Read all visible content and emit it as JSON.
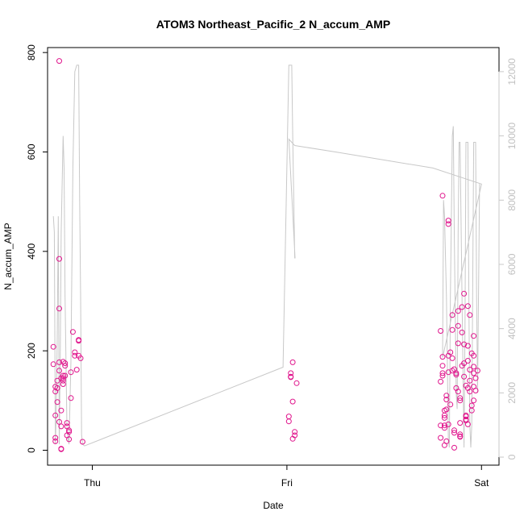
{
  "chart_data": {
    "type": "scatter",
    "title": "ATOM3 Northeast_Pacific_2 N_accum_AMP",
    "xlabel": "Date",
    "ylabel": "N_accum_AMP",
    "x_ticks": [
      {
        "label": "Thu",
        "x": 1.0
      },
      {
        "label": "Fri",
        "x": 2.0
      },
      {
        "label": "Sat",
        "x": 3.0
      }
    ],
    "xlim": [
      0.77,
      3.09
    ],
    "ylim": [
      -30,
      810
    ],
    "y_ticks": [
      0,
      200,
      400,
      600,
      800
    ],
    "y2lim": [
      -250,
      12750
    ],
    "y2_ticks": [
      0,
      2000,
      4000,
      6000,
      8000,
      10000,
      12000
    ],
    "colors": {
      "points": "#e0148c",
      "line": "#c8c8c8",
      "axis": "#000000",
      "right_axis": "#c0c0c0"
    },
    "points": [
      [
        0.8,
        173
      ],
      [
        0.8,
        208
      ],
      [
        0.81,
        118
      ],
      [
        0.81,
        128
      ],
      [
        0.81,
        70
      ],
      [
        0.81,
        18
      ],
      [
        0.81,
        25
      ],
      [
        0.82,
        97
      ],
      [
        0.82,
        125
      ],
      [
        0.82,
        140
      ],
      [
        0.83,
        160
      ],
      [
        0.83,
        177
      ],
      [
        0.83,
        783
      ],
      [
        0.83,
        385
      ],
      [
        0.83,
        285
      ],
      [
        0.83,
        57
      ],
      [
        0.84,
        48
      ],
      [
        0.84,
        3
      ],
      [
        0.84,
        2
      ],
      [
        0.84,
        145
      ],
      [
        0.84,
        80
      ],
      [
        0.85,
        150
      ],
      [
        0.85,
        140
      ],
      [
        0.85,
        145
      ],
      [
        0.85,
        133
      ],
      [
        0.85,
        178
      ],
      [
        0.86,
        175
      ],
      [
        0.86,
        170
      ],
      [
        0.86,
        150
      ],
      [
        0.87,
        55
      ],
      [
        0.87,
        48
      ],
      [
        0.87,
        30
      ],
      [
        0.88,
        37
      ],
      [
        0.88,
        22
      ],
      [
        0.88,
        40
      ],
      [
        0.89,
        105
      ],
      [
        0.89,
        157
      ],
      [
        0.9,
        238
      ],
      [
        0.91,
        190
      ],
      [
        0.91,
        197
      ],
      [
        0.92,
        162
      ],
      [
        0.93,
        220
      ],
      [
        0.93,
        222
      ],
      [
        0.93,
        190
      ],
      [
        0.94,
        185
      ],
      [
        0.95,
        17
      ],
      [
        2.01,
        68
      ],
      [
        2.01,
        58
      ],
      [
        2.02,
        148
      ],
      [
        2.02,
        155
      ],
      [
        2.02,
        147
      ],
      [
        2.03,
        177
      ],
      [
        2.03,
        98
      ],
      [
        2.03,
        23
      ],
      [
        2.04,
        30
      ],
      [
        2.04,
        37
      ],
      [
        2.05,
        135
      ],
      [
        2.79,
        25
      ],
      [
        2.79,
        50
      ],
      [
        2.79,
        138
      ],
      [
        2.79,
        240
      ],
      [
        2.8,
        188
      ],
      [
        2.8,
        155
      ],
      [
        2.8,
        150
      ],
      [
        2.8,
        170
      ],
      [
        2.8,
        512
      ],
      [
        2.81,
        50
      ],
      [
        2.81,
        10
      ],
      [
        2.81,
        45
      ],
      [
        2.81,
        65
      ],
      [
        2.81,
        80
      ],
      [
        2.81,
        70
      ],
      [
        2.82,
        110
      ],
      [
        2.82,
        82
      ],
      [
        2.82,
        102
      ],
      [
        2.82,
        18
      ],
      [
        2.83,
        455
      ],
      [
        2.83,
        462
      ],
      [
        2.83,
        52
      ],
      [
        2.83,
        190
      ],
      [
        2.83,
        157
      ],
      [
        2.84,
        197
      ],
      [
        2.84,
        92
      ],
      [
        2.85,
        160
      ],
      [
        2.85,
        242
      ],
      [
        2.85,
        272
      ],
      [
        2.85,
        185
      ],
      [
        2.86,
        163
      ],
      [
        2.86,
        40
      ],
      [
        2.86,
        35
      ],
      [
        2.86,
        5
      ],
      [
        2.87,
        155
      ],
      [
        2.87,
        152
      ],
      [
        2.87,
        125
      ],
      [
        2.88,
        118
      ],
      [
        2.88,
        250
      ],
      [
        2.88,
        280
      ],
      [
        2.88,
        215
      ],
      [
        2.89,
        55
      ],
      [
        2.89,
        27
      ],
      [
        2.89,
        32
      ],
      [
        2.89,
        28
      ],
      [
        2.89,
        105
      ],
      [
        2.89,
        100
      ],
      [
        2.9,
        288
      ],
      [
        2.9,
        237
      ],
      [
        2.9,
        170
      ],
      [
        2.91,
        213
      ],
      [
        2.91,
        175
      ],
      [
        2.91,
        148
      ],
      [
        2.91,
        315
      ],
      [
        2.92,
        130
      ],
      [
        2.92,
        62
      ],
      [
        2.92,
        70
      ],
      [
        2.92,
        68
      ],
      [
        2.92,
        60
      ],
      [
        2.93,
        52
      ],
      [
        2.93,
        290
      ],
      [
        2.93,
        210
      ],
      [
        2.93,
        125
      ],
      [
        2.93,
        180
      ],
      [
        2.94,
        140
      ],
      [
        2.94,
        272
      ],
      [
        2.94,
        162
      ],
      [
        2.94,
        118
      ],
      [
        2.95,
        90
      ],
      [
        2.95,
        80
      ],
      [
        2.95,
        195
      ],
      [
        2.96,
        168
      ],
      [
        2.96,
        155
      ],
      [
        2.96,
        100
      ],
      [
        2.96,
        190
      ],
      [
        2.96,
        230
      ],
      [
        2.96,
        128
      ],
      [
        2.97,
        145
      ],
      [
        2.97,
        120
      ],
      [
        2.98,
        160
      ]
    ],
    "secondary_line": [
      [
        0.8,
        7500
      ],
      [
        0.805,
        7000
      ],
      [
        0.81,
        400
      ],
      [
        0.815,
        1500
      ],
      [
        0.82,
        4000
      ],
      [
        0.825,
        7500
      ],
      [
        0.83,
        400
      ],
      [
        0.835,
        3000
      ],
      [
        0.84,
        7000
      ],
      [
        0.85,
        10000
      ],
      [
        0.855,
        9000
      ],
      [
        0.86,
        5000
      ],
      [
        0.87,
        800
      ],
      [
        0.88,
        400
      ],
      [
        0.89,
        3000
      ],
      [
        0.9,
        9000
      ],
      [
        0.91,
        12000
      ],
      [
        0.92,
        12200
      ],
      [
        0.93,
        12200
      ],
      [
        0.935,
        8000
      ],
      [
        0.94,
        5000
      ],
      [
        0.945,
        700
      ],
      [
        0.95,
        400
      ],
      [
        0.96,
        350
      ],
      [
        1.98,
        2800
      ],
      [
        2.01,
        12200
      ],
      [
        2.025,
        12200
      ],
      [
        2.03,
        10000
      ],
      [
        2.04,
        6200
      ],
      [
        2.042,
        6200
      ],
      [
        2.01,
        9900
      ],
      [
        2.04,
        9700
      ],
      [
        2.25,
        9500
      ],
      [
        2.5,
        9250
      ],
      [
        2.75,
        9000
      ],
      [
        3.0,
        8500
      ],
      [
        2.8,
        3100
      ],
      [
        2.805,
        8000
      ],
      [
        2.81,
        7500
      ],
      [
        2.82,
        5000
      ],
      [
        2.83,
        500
      ],
      [
        2.835,
        300
      ],
      [
        2.84,
        5000
      ],
      [
        2.85,
        10000
      ],
      [
        2.855,
        10300
      ],
      [
        2.86,
        7000
      ],
      [
        2.87,
        2000
      ],
      [
        2.875,
        1500
      ],
      [
        2.88,
        7000
      ],
      [
        2.885,
        9800
      ],
      [
        2.89,
        9800
      ],
      [
        2.9,
        5000
      ],
      [
        2.91,
        300
      ],
      [
        2.915,
        4000
      ],
      [
        2.92,
        9800
      ],
      [
        2.93,
        9800
      ],
      [
        2.935,
        5000
      ],
      [
        2.94,
        1000
      ],
      [
        2.945,
        300
      ],
      [
        2.95,
        1000
      ],
      [
        2.96,
        9800
      ],
      [
        2.97,
        9800
      ],
      [
        2.975,
        5000
      ],
      [
        2.98,
        2000
      ],
      [
        2.99,
        8500
      ]
    ]
  }
}
